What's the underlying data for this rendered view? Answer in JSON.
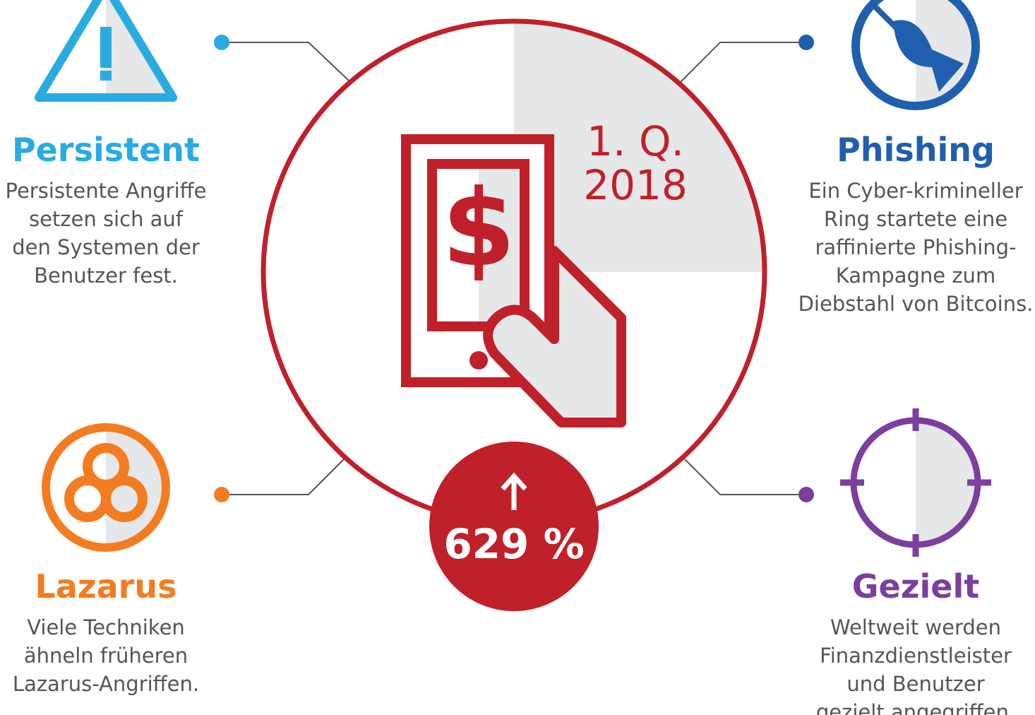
{
  "center": {
    "period_lines": [
      "1. Q.",
      "2018"
    ],
    "stat": "629 %"
  },
  "items": [
    {
      "title": "Persistent",
      "lines": [
        "Persistente Angriffe",
        "setzen sich auf",
        "den Systemen der",
        "Benutzer fest."
      ]
    },
    {
      "title": "Phishing",
      "lines": [
        "Ein Cyber-krimineller",
        "Ring startete eine",
        "raffinierte Phishing-",
        "Kampagne zum",
        "Diebstahl von Bitcoins."
      ]
    },
    {
      "title": "Lazarus",
      "lines": [
        "Viele Techniken",
        "ähneln früheren",
        "Lazarus-Angriffen."
      ]
    },
    {
      "title": "Gezielt",
      "lines": [
        "Weltweit werden",
        "Finanzdienstleister",
        "und Benutzer",
        "gezielt angegriffen."
      ]
    }
  ]
}
